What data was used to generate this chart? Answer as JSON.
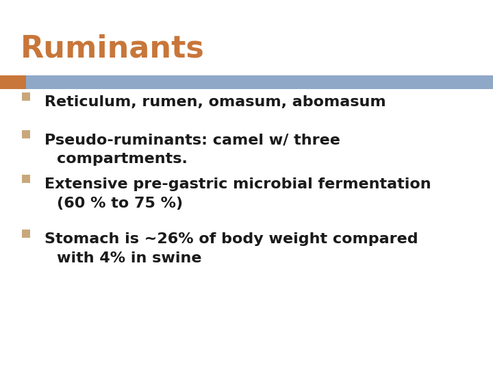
{
  "title": "Ruminants",
  "title_color": "#C8763A",
  "title_fontsize": 32,
  "title_bold": true,
  "bar_left_color": "#C8763A",
  "bar_right_color": "#8FA8C8",
  "bullet_points": [
    [
      "Reticulum, rumen, omasum, abomasum"
    ],
    [
      "Pseudo-ruminants: camel w/ three",
      "compartments."
    ],
    [
      "Extensive pre-gastric microbial fermentation",
      "(60 % to 75 %)"
    ],
    [
      "Stomach is ~26% of body weight compared",
      "with 4% in swine"
    ]
  ],
  "bullet_color": "#1a1a1a",
  "bullet_marker_color": "#C8A87A",
  "bullet_fontsize": 16,
  "bg_color": "#FFFFFF"
}
